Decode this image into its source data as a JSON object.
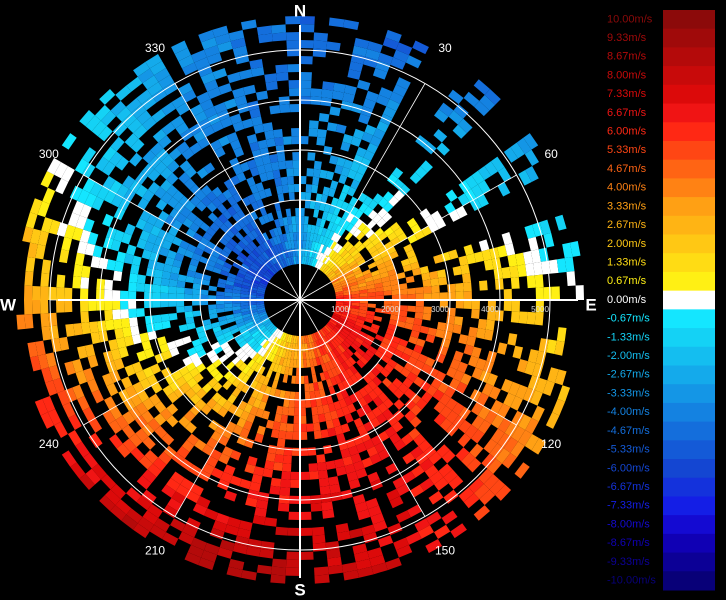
{
  "compass": {
    "north": "N",
    "east": "E",
    "south": "S",
    "west": "W"
  },
  "azimuth_labels": [
    {
      "text": "30",
      "angle": 30
    },
    {
      "text": "60",
      "angle": 60
    },
    {
      "text": "120",
      "angle": 120
    },
    {
      "text": "150",
      "angle": 150
    },
    {
      "text": "210",
      "angle": 210
    },
    {
      "text": "240",
      "angle": 240
    },
    {
      "text": "300",
      "angle": 300
    },
    {
      "text": "330",
      "angle": 330
    }
  ],
  "range_labels": [
    "1000",
    "2000",
    "3000",
    "4000",
    "5000"
  ],
  "legend": [
    {
      "label": "10.00m/s",
      "color": "#8c0a0a"
    },
    {
      "label": "9.33m/s",
      "color": "#a00a0a"
    },
    {
      "label": "8.67m/s",
      "color": "#b40a0a"
    },
    {
      "label": "8.00m/s",
      "color": "#c80a0a"
    },
    {
      "label": "7.33m/s",
      "color": "#dc0a0a"
    },
    {
      "label": "6.67m/s",
      "color": "#f01414"
    },
    {
      "label": "6.00m/s",
      "color": "#ff2814"
    },
    {
      "label": "5.33m/s",
      "color": "#ff4614"
    },
    {
      "label": "4.67m/s",
      "color": "#ff6414"
    },
    {
      "label": "4.00m/s",
      "color": "#ff8214"
    },
    {
      "label": "3.33m/s",
      "color": "#ffa014"
    },
    {
      "label": "2.67m/s",
      "color": "#ffb414"
    },
    {
      "label": "2.00m/s",
      "color": "#ffc814"
    },
    {
      "label": "1.33m/s",
      "color": "#ffdc14"
    },
    {
      "label": "0.67m/s",
      "color": "#fff014"
    },
    {
      "label": "0.00m/s",
      "color": "#ffffff"
    },
    {
      "label": "-0.67m/s",
      "color": "#14e6ff"
    },
    {
      "label": "-1.33m/s",
      "color": "#14d2f5"
    },
    {
      "label": "-2.00m/s",
      "color": "#14bef0"
    },
    {
      "label": "-2.67m/s",
      "color": "#14aaeb"
    },
    {
      "label": "-3.33m/s",
      "color": "#1496e6"
    },
    {
      "label": "-4.00m/s",
      "color": "#1482e1"
    },
    {
      "label": "-4.67m/s",
      "color": "#146edc"
    },
    {
      "label": "-5.33m/s",
      "color": "#145ad7"
    },
    {
      "label": "-6.00m/s",
      "color": "#1446d2"
    },
    {
      "label": "-6.67m/s",
      "color": "#1432dc"
    },
    {
      "label": "-7.33m/s",
      "color": "#141ee6"
    },
    {
      "label": "-8.00m/s",
      "color": "#140ad2"
    },
    {
      "label": "-8.67m/s",
      "color": "#1000b4"
    },
    {
      "label": "-9.33m/s",
      "color": "#0c0096"
    },
    {
      "label": "-10.00m/s",
      "color": "#080078"
    }
  ]
}
